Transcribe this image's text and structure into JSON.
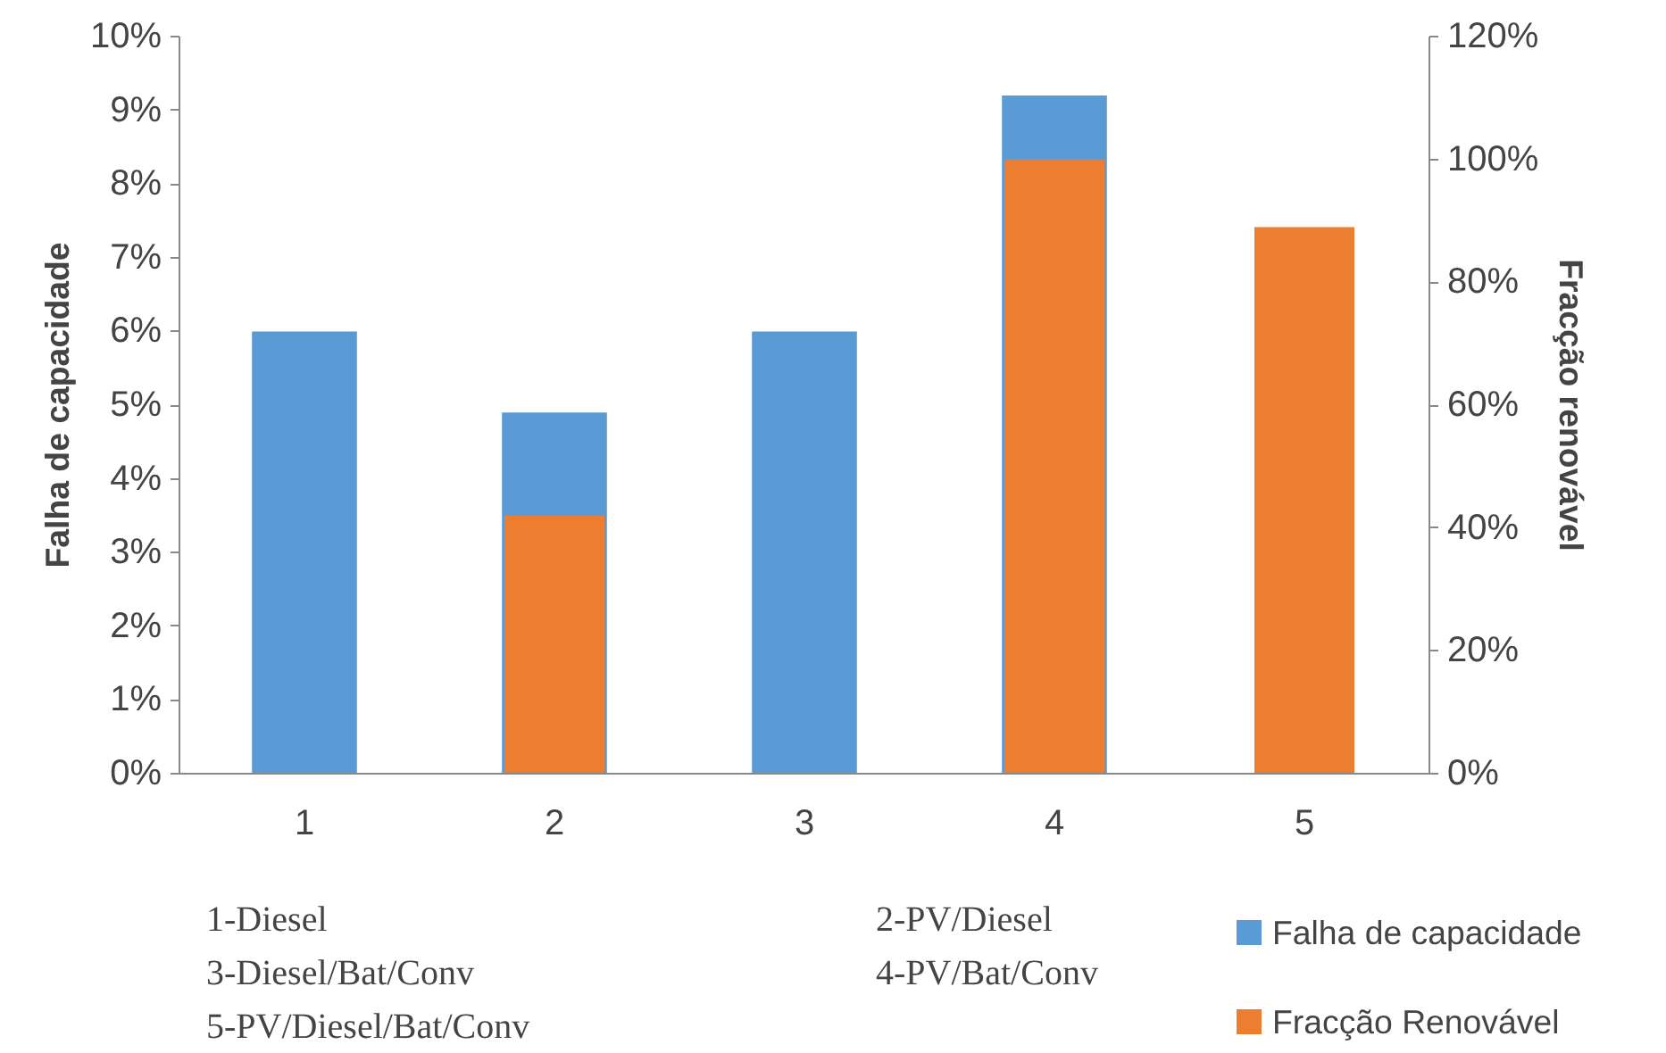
{
  "chart_data": {
    "type": "bar",
    "ylabel": "Falha de capacidade",
    "y2label": "Fracção renovável",
    "categories": [
      "1",
      "2",
      "3",
      "4",
      "5"
    ],
    "series": [
      {
        "name": "Falha de capacidade",
        "color": "#5b9bd5",
        "values": [
          6.0,
          4.9,
          6.0,
          9.2,
          null
        ]
      },
      {
        "name": "Fracção Renovável",
        "color": "#ed7d31",
        "axis": "y2",
        "values": [
          0,
          42,
          0,
          100,
          89
        ]
      }
    ],
    "ylim": [
      0,
      10
    ],
    "yticks": [
      {
        "value": 0,
        "label": "0%"
      },
      {
        "value": 1,
        "label": "1%"
      },
      {
        "value": 2,
        "label": "2%"
      },
      {
        "value": 3,
        "label": "3%"
      },
      {
        "value": 4,
        "label": "4%"
      },
      {
        "value": 5,
        "label": "5%"
      },
      {
        "value": 6,
        "label": "6%"
      },
      {
        "value": 7,
        "label": "7%"
      },
      {
        "value": 8,
        "label": "8%"
      },
      {
        "value": 9,
        "label": "9%"
      },
      {
        "value": 10,
        "label": "10%"
      }
    ],
    "y2lim": [
      0,
      120
    ],
    "y2ticks": [
      {
        "value": 0,
        "label": "0%"
      },
      {
        "value": 20,
        "label": "20%"
      },
      {
        "value": 40,
        "label": "40%"
      },
      {
        "value": 60,
        "label": "60%"
      },
      {
        "value": 80,
        "label": "80%"
      },
      {
        "value": 100,
        "label": "100%"
      },
      {
        "value": 120,
        "label": "120%"
      }
    ],
    "annotations": [
      "1-Diesel",
      "2-PV/Diesel",
      "3-Diesel/Bat/Conv",
      "4-PV/Bat/Conv",
      "5-PV/Diesel/Bat/Conv"
    ],
    "legend": "bottom right",
    "grid": false
  }
}
